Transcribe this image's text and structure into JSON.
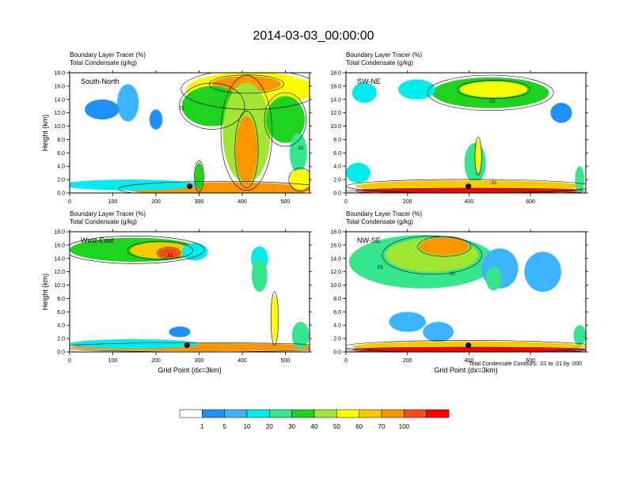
{
  "figure": {
    "title": "2014-03-03_00:00:00",
    "footnote": "Total Condensate Contours: .01 to .01 by .000"
  },
  "colorbar": {
    "labels": [
      "1",
      "5",
      "10",
      "20",
      "30",
      "40",
      "50",
      "60",
      "70",
      "100"
    ],
    "colors": [
      "#ffffff",
      "#1e90ff",
      "#3cb4ff",
      "#00ecec",
      "#35e68c",
      "#1ed21e",
      "#a0e632",
      "#fcfc00",
      "#fcc800",
      "#fc9600",
      "#ff4b10",
      "#ff0000"
    ]
  },
  "chart_data": [
    {
      "type": "heatmap",
      "panel": "top-left",
      "label": "South-North",
      "title_lines": [
        "Boundary Layer Tracer   (%)",
        "Total Condensate   (g/kg)"
      ],
      "xlabel": "",
      "ylabel": "Height (km)",
      "xlim": [
        0,
        556
      ],
      "ylim": [
        0,
        18
      ],
      "xticks": [
        "0",
        "100",
        "200",
        "300",
        "400",
        "500"
      ],
      "xtick_values": [
        0,
        100,
        200,
        300,
        400,
        500
      ],
      "yticks": [
        "0.0",
        "2.0",
        "4.0",
        "6.0",
        "8.0",
        "10.0",
        "12.0",
        "14.0",
        "16.0",
        "18.0"
      ],
      "ytick_values": [
        0,
        2,
        4,
        6,
        8,
        10,
        12,
        14,
        16,
        18
      ],
      "contour_labels": [
        {
          "text": ".01",
          "x": 258,
          "y": 12.5
        },
        {
          "text": ".01",
          "x": 535,
          "y": 6.5
        }
      ],
      "marker": {
        "x": 278,
        "y": 1.0
      },
      "blobs": [
        {
          "x": 420,
          "y": 15.5,
          "rx": 150,
          "ry": 2.6,
          "level": 7
        },
        {
          "x": 410,
          "y": 16.3,
          "rx": 80,
          "ry": 1.2,
          "level": 9
        },
        {
          "x": 330,
          "y": 13.0,
          "rx": 70,
          "ry": 3.0,
          "level": 5
        },
        {
          "x": 410,
          "y": 9.0,
          "rx": 55,
          "ry": 7.5,
          "level": 6
        },
        {
          "x": 410,
          "y": 6.5,
          "rx": 25,
          "ry": 5.0,
          "level": 9
        },
        {
          "x": 500,
          "y": 11.0,
          "rx": 45,
          "ry": 3.5,
          "level": 5
        },
        {
          "x": 530,
          "y": 6.0,
          "rx": 20,
          "ry": 3.0,
          "level": 4
        },
        {
          "x": 135,
          "y": 13.5,
          "rx": 25,
          "ry": 2.8,
          "level": 2
        },
        {
          "x": 75,
          "y": 12.5,
          "rx": 40,
          "ry": 1.5,
          "level": 1
        },
        {
          "x": 200,
          "y": 11.0,
          "rx": 15,
          "ry": 1.5,
          "level": 1
        },
        {
          "x": 350,
          "y": 0.6,
          "rx": 220,
          "ry": 1.0,
          "level": 9
        },
        {
          "x": 140,
          "y": 1.2,
          "rx": 160,
          "ry": 0.8,
          "level": 3
        },
        {
          "x": 300,
          "y": 2.5,
          "rx": 10,
          "ry": 2.0,
          "level": 5
        },
        {
          "x": 535,
          "y": 2.0,
          "rx": 25,
          "ry": 1.5,
          "level": 7
        }
      ]
    },
    {
      "type": "heatmap",
      "panel": "top-right",
      "label": "SW-NE",
      "title_lines": [
        "Boundary Layer Tracer   (%)",
        "Total Condensate   (g/kg)"
      ],
      "xlabel": "",
      "ylabel": "",
      "xlim": [
        0,
        780
      ],
      "ylim": [
        0,
        18
      ],
      "xticks": [
        "0",
        "200",
        "400",
        "600"
      ],
      "xtick_values": [
        0,
        200,
        400,
        600
      ],
      "yticks": [
        "0.0",
        "2.0",
        "4.0",
        "6.0",
        "8.0",
        "10.0",
        "12.0",
        "14.0",
        "16.0",
        "18.0"
      ],
      "ytick_values": [
        0,
        2,
        4,
        6,
        8,
        10,
        12,
        14,
        16,
        18
      ],
      "contour_labels": [
        {
          "text": ".01",
          "x": 475,
          "y": 13.5
        },
        {
          "text": ".01",
          "x": 480,
          "y": 1.3
        }
      ],
      "marker": {
        "x": 398,
        "y": 1.0
      },
      "blobs": [
        {
          "x": 470,
          "y": 15.0,
          "rx": 190,
          "ry": 2.3,
          "level": 5
        },
        {
          "x": 480,
          "y": 15.5,
          "rx": 110,
          "ry": 1.2,
          "level": 7
        },
        {
          "x": 60,
          "y": 15.0,
          "rx": 40,
          "ry": 1.5,
          "level": 3
        },
        {
          "x": 230,
          "y": 15.5,
          "rx": 60,
          "ry": 1.5,
          "level": 3
        },
        {
          "x": 700,
          "y": 12.0,
          "rx": 35,
          "ry": 1.5,
          "level": 1
        },
        {
          "x": 420,
          "y": 4.5,
          "rx": 35,
          "ry": 3.0,
          "level": 4
        },
        {
          "x": 430,
          "y": 5.5,
          "rx": 10,
          "ry": 2.5,
          "level": 7
        },
        {
          "x": 40,
          "y": 3.0,
          "rx": 40,
          "ry": 1.5,
          "level": 3
        },
        {
          "x": 400,
          "y": 1.0,
          "rx": 370,
          "ry": 0.9,
          "level": 8
        },
        {
          "x": 400,
          "y": 0.3,
          "rx": 370,
          "ry": 0.35,
          "level": 11
        },
        {
          "x": 760,
          "y": 2.0,
          "rx": 15,
          "ry": 2.0,
          "level": 4
        }
      ]
    },
    {
      "type": "heatmap",
      "panel": "bottom-left",
      "label": "West-East",
      "title_lines": [
        "Boundary Layer Tracer   (%)",
        "Total Condensate   (g/kg)"
      ],
      "xlabel": "Grid Point (dx=3km)",
      "ylabel": "Height (km)",
      "xlim": [
        0,
        556
      ],
      "ylim": [
        0,
        18
      ],
      "xticks": [
        "0",
        "100",
        "200",
        "300",
        "400",
        "500"
      ],
      "xtick_values": [
        0,
        100,
        200,
        300,
        400,
        500
      ],
      "yticks": [
        "0.0",
        "2.0",
        "4.0",
        "6.0",
        "8.0",
        "10.0",
        "12.0",
        "14.0",
        "16.0",
        "18.0"
      ],
      "ytick_values": [
        0,
        2,
        4,
        6,
        8,
        10,
        12,
        14,
        16,
        18
      ],
      "contour_labels": [
        {
          "text": ".01",
          "x": 232,
          "y": 14.2
        }
      ],
      "marker": {
        "x": 272,
        "y": 1.0
      },
      "blobs": [
        {
          "x": 150,
          "y": 15.3,
          "rx": 150,
          "ry": 1.8,
          "level": 5
        },
        {
          "x": 210,
          "y": 15.2,
          "rx": 70,
          "ry": 1.2,
          "level": 8
        },
        {
          "x": 230,
          "y": 14.8,
          "rx": 25,
          "ry": 0.8,
          "level": 10
        },
        {
          "x": 290,
          "y": 15.0,
          "rx": 30,
          "ry": 1.3,
          "level": 3
        },
        {
          "x": 440,
          "y": 14.0,
          "rx": 20,
          "ry": 1.8,
          "level": 3
        },
        {
          "x": 440,
          "y": 11.5,
          "rx": 18,
          "ry": 2.5,
          "level": 4
        },
        {
          "x": 475,
          "y": 5.0,
          "rx": 8,
          "ry": 3.5,
          "level": 7
        },
        {
          "x": 255,
          "y": 3.0,
          "rx": 25,
          "ry": 0.8,
          "level": 1
        },
        {
          "x": 300,
          "y": 0.7,
          "rx": 300,
          "ry": 0.6,
          "level": 9
        },
        {
          "x": 150,
          "y": 1.2,
          "rx": 150,
          "ry": 0.7,
          "level": 3
        },
        {
          "x": 535,
          "y": 2.5,
          "rx": 20,
          "ry": 2.0,
          "level": 4
        }
      ]
    },
    {
      "type": "heatmap",
      "panel": "bottom-right",
      "label": "NW-SE",
      "title_lines": [
        "Boundary Layer Tracer   (%)",
        "Total Condensate   (g/kg)"
      ],
      "xlabel": "Grid Point (dx=3km)",
      "ylabel": "",
      "xlim": [
        0,
        780
      ],
      "ylim": [
        0,
        18
      ],
      "xticks": [
        "0",
        "200",
        "400",
        "600"
      ],
      "xtick_values": [
        0,
        200,
        400,
        600
      ],
      "yticks": [
        "0.0",
        "2.0",
        "4.0",
        "6.0",
        "8.0",
        "10.0",
        "12.0",
        "14.0",
        "16.0",
        "18.0"
      ],
      "ytick_values": [
        0,
        2,
        4,
        6,
        8,
        10,
        12,
        14,
        16,
        18
      ],
      "contour_labels": [
        {
          "text": ".01",
          "x": 110,
          "y": 12.5
        },
        {
          "text": ".01",
          "x": 345,
          "y": 11.5
        }
      ],
      "marker": {
        "x": 398,
        "y": 1.0
      },
      "blobs": [
        {
          "x": 250,
          "y": 13.5,
          "rx": 240,
          "ry": 4.0,
          "level": 4
        },
        {
          "x": 280,
          "y": 14.5,
          "rx": 150,
          "ry": 2.5,
          "level": 6
        },
        {
          "x": 320,
          "y": 15.8,
          "rx": 80,
          "ry": 1.3,
          "level": 9
        },
        {
          "x": 500,
          "y": 12.5,
          "rx": 60,
          "ry": 3.0,
          "level": 2
        },
        {
          "x": 480,
          "y": 11.0,
          "rx": 25,
          "ry": 1.8,
          "level": 4
        },
        {
          "x": 640,
          "y": 12.0,
          "rx": 60,
          "ry": 3.0,
          "level": 2
        },
        {
          "x": 200,
          "y": 4.5,
          "rx": 60,
          "ry": 1.5,
          "level": 2
        },
        {
          "x": 300,
          "y": 3.0,
          "rx": 50,
          "ry": 1.5,
          "level": 2
        },
        {
          "x": 400,
          "y": 0.8,
          "rx": 380,
          "ry": 0.8,
          "level": 8
        },
        {
          "x": 400,
          "y": 0.3,
          "rx": 380,
          "ry": 0.35,
          "level": 11
        },
        {
          "x": 760,
          "y": 2.5,
          "rx": 20,
          "ry": 1.5,
          "level": 4
        }
      ]
    }
  ]
}
